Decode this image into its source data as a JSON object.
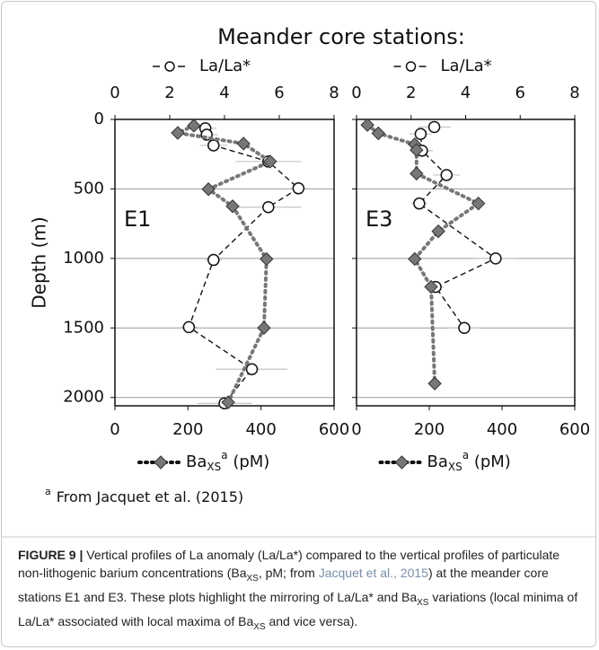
{
  "figure_title": "Meander core stations:",
  "footnote": {
    "sup": "a",
    "text": "From Jacquet et al. (2015)"
  },
  "caption": {
    "label": "FIGURE 9 |",
    "parts": [
      {
        "text": "Vertical profiles of La anomaly (La/La*) compared to the vertical profiles of particulate non-lithogenic barium concentrations (Ba",
        "style": "normal"
      },
      {
        "text": "XS",
        "style": "sub"
      },
      {
        "text": ", pM; from ",
        "style": "normal"
      },
      {
        "text": "Jacquet et al., 2015",
        "style": "link"
      },
      {
        "text": ") at the meander core stations E1 and E3. These plots highlight the mirroring of La/La* and Ba",
        "style": "normal"
      },
      {
        "text": "XS",
        "style": "sub"
      },
      {
        "text": " variations (local minima of La/La* associated with local maxima of Ba",
        "style": "normal"
      },
      {
        "text": "XS",
        "style": "sub"
      },
      {
        "text": " and vice versa).",
        "style": "normal"
      }
    ]
  },
  "chart_data": [
    {
      "type": "line",
      "panel_label": "E1",
      "ylabel": "Depth (m)",
      "ylim": [
        0,
        2060
      ],
      "y_inverted": true,
      "yticks": [
        0,
        500,
        1000,
        1500,
        2000
      ],
      "show_ytick_labels": true,
      "grid": true,
      "xlim": [
        0,
        8
      ],
      "xticks": [
        0,
        2,
        4,
        6,
        8
      ],
      "x2lim": [
        0,
        600
      ],
      "x2ticks": [
        0,
        200,
        400,
        600
      ],
      "series": [
        {
          "name": "La/La*",
          "axis": "x",
          "marker": "circle",
          "color": "#111111",
          "values": [
            3.3,
            3.35,
            3.6,
            5.6,
            6.7,
            5.6,
            3.6,
            2.7,
            5.0,
            4.0
          ],
          "depths": [
            64,
            110,
            187,
            303,
            496,
            631,
            1011,
            1494,
            1797,
            2042
          ],
          "errors": [
            0.4,
            0.4,
            0.5,
            1.2,
            0.3,
            1.2,
            0.3,
            0.3,
            1.3,
            1.0
          ]
        },
        {
          "name": "Ba",
          "name_sub": "XS",
          "name_sup": "a",
          "name_unit": " (pM)",
          "axis": "x2",
          "marker": "diamond",
          "color": "#777777",
          "values": [
            216,
            172,
            352,
            425,
            256,
            322,
            415,
            408,
            310
          ],
          "depths": [
            45,
            97,
            174,
            303,
            502,
            625,
            1004,
            1500,
            2035
          ]
        }
      ]
    },
    {
      "type": "line",
      "panel_label": "E3",
      "ylim": [
        0,
        2060
      ],
      "y_inverted": true,
      "yticks": [
        0,
        500,
        1000,
        1500,
        2000
      ],
      "show_ytick_labels": false,
      "grid": true,
      "xlim": [
        0,
        8
      ],
      "xticks": [
        0,
        2,
        4,
        6,
        8
      ],
      "x2lim": [
        0,
        600
      ],
      "x2ticks": [
        0,
        200,
        400,
        600
      ],
      "series": [
        {
          "name": "La/La*",
          "axis": "x",
          "marker": "circle",
          "color": "#111111",
          "values": [
            2.85,
            2.35,
            2.4,
            3.3,
            2.3,
            5.1,
            2.9,
            3.95
          ],
          "depths": [
            55,
            105,
            225,
            400,
            605,
            1000,
            1205,
            1500
          ],
          "errors": [
            0.6,
            0.4,
            0.4,
            0.5,
            0.3,
            0.8,
            0.3,
            0.6
          ]
        },
        {
          "name": "Ba",
          "name_sub": "XS",
          "name_sup": "a",
          "name_unit": " (pM)",
          "axis": "x2",
          "marker": "diamond",
          "color": "#777777",
          "values": [
            30,
            60,
            160,
            165,
            165,
            335,
            225,
            160,
            205,
            215
          ],
          "depths": [
            40,
            100,
            180,
            220,
            390,
            605,
            805,
            1004,
            1204,
            1900
          ]
        }
      ]
    }
  ]
}
